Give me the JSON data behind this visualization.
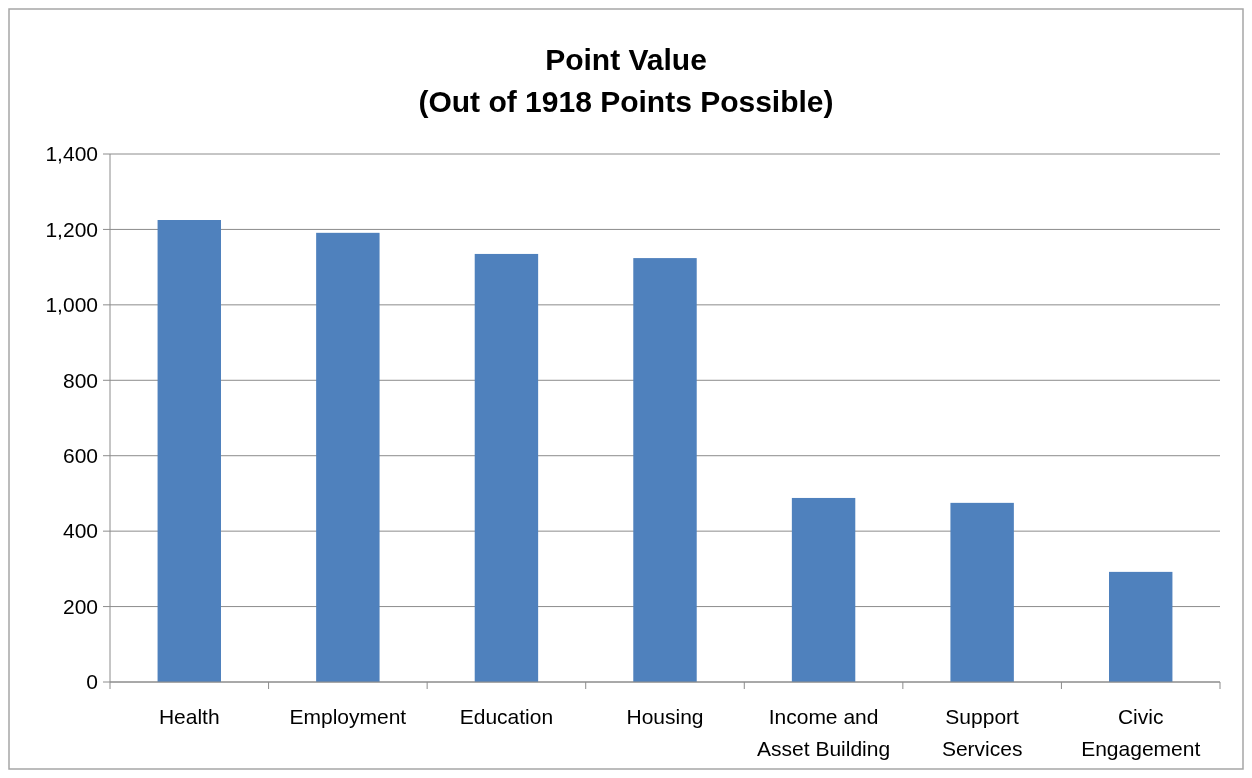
{
  "chart_data": {
    "type": "bar",
    "title": "Point Value",
    "subtitle": "(Out of 1918 Points Possible)",
    "categories": [
      "Health",
      "Employment",
      "Education",
      "Housing",
      "Income and Asset Building",
      "Support Services",
      "Civic Engagement"
    ],
    "values": [
      1225,
      1191,
      1135,
      1124,
      488,
      475,
      292
    ],
    "color": "#4f81bd",
    "ylim": [
      0,
      1400
    ],
    "yticks": [
      0,
      200,
      400,
      600,
      800,
      {
        "value": 1000,
        "label": "1,000"
      },
      {
        "value": 1200,
        "label": "1,200"
      },
      {
        "value": 1400,
        "label": "1,400"
      }
    ],
    "grid": "y"
  }
}
